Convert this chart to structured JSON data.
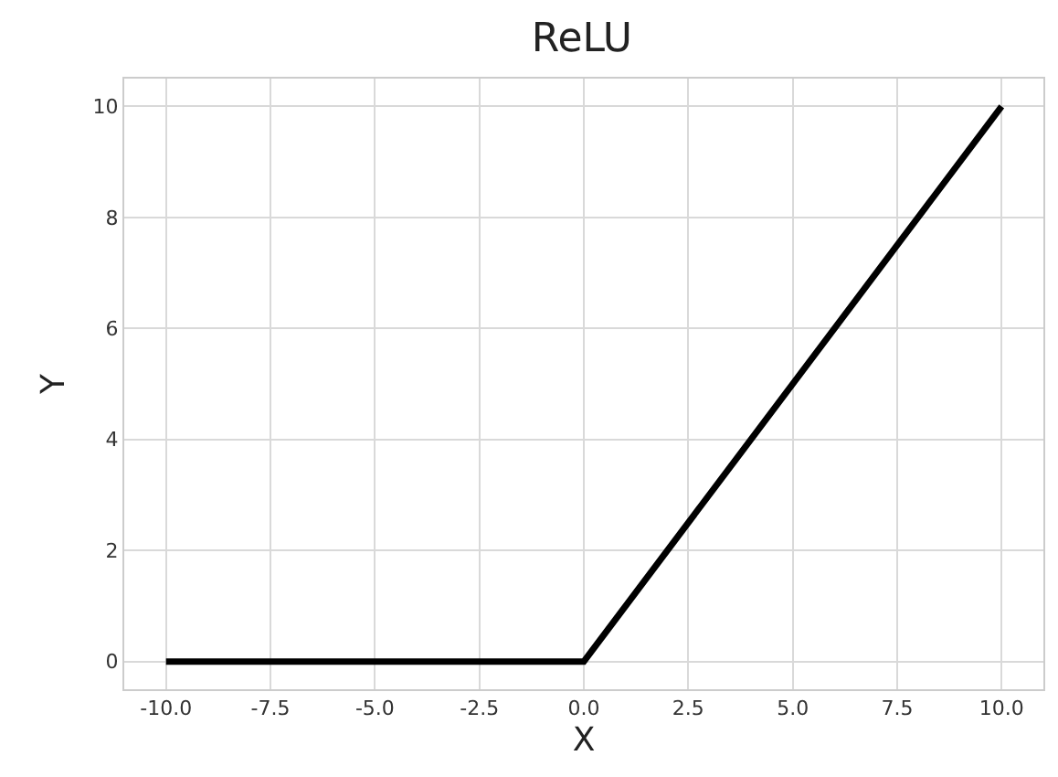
{
  "chart_data": {
    "type": "line",
    "title": "ReLU",
    "xlabel": "X",
    "ylabel": "Y",
    "x": [
      -10,
      0,
      10
    ],
    "series": [
      {
        "color": "#000000",
        "values": [
          0,
          0,
          10
        ]
      }
    ],
    "xlim": [
      -11,
      11
    ],
    "xticks": [
      {
        "value": -10,
        "label": "-10.0"
      },
      {
        "value": -7.5,
        "label": "-7.5"
      },
      {
        "value": -5,
        "label": "-5.0"
      },
      {
        "value": -2.5,
        "label": "-2.5"
      },
      {
        "value": 0,
        "label": "0.0"
      },
      {
        "value": 2.5,
        "label": "2.5"
      },
      {
        "value": 5,
        "label": "5.0"
      },
      {
        "value": 7.5,
        "label": "7.5"
      },
      {
        "value": 10,
        "label": "10.0"
      }
    ],
    "ylim": [
      -0.5,
      10.5
    ],
    "yticks": [
      0,
      2,
      4,
      6,
      8,
      10
    ],
    "grid": true,
    "line_style": "solid",
    "marker": "none"
  }
}
